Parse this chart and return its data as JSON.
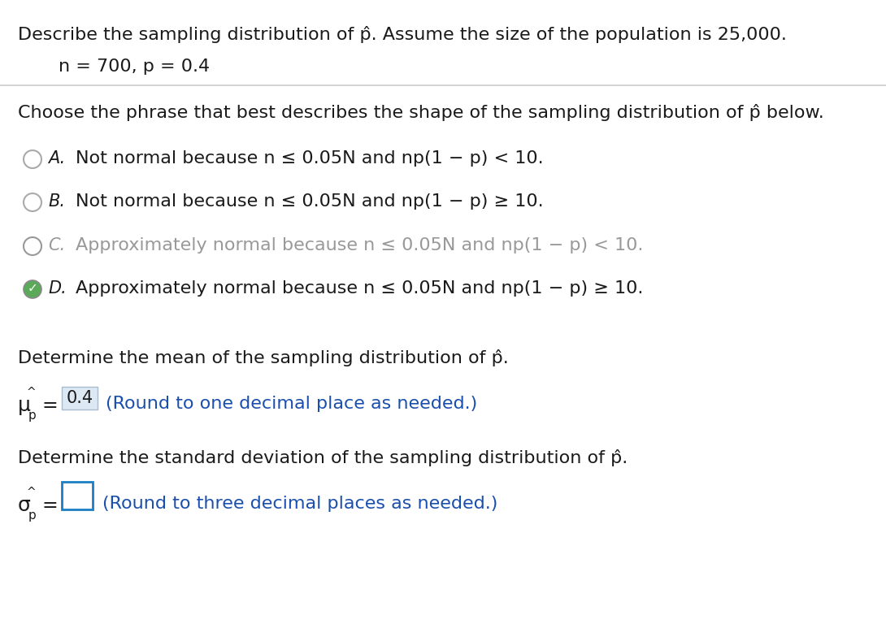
{
  "bg_color": "#ffffff",
  "text_color": "#1a1a1a",
  "gray_text_color": "#999999",
  "blue_hint_color": "#1a4fad",
  "green_check_color": "#4CAF50",
  "circle_color": "#aaaaaa",
  "selected_circle_color": "#5aaa5a",
  "box_bg_color": "#dce9f5",
  "box_border_color": "#aabbcc",
  "empty_box_border": "#1a7fc4",
  "divider_color": "#cccccc",
  "line1": "Describe the sampling distribution of p̂. Assume the size of the population is 25,000.",
  "line2": "n = 700, p = 0.4",
  "section1": "Choose the phrase that best describes the shape of the sampling distribution of p̂ below.",
  "options": [
    {
      "letter": "A.",
      "text": "Not normal because n ≤ 0.05N and np(1 − p) < 10.",
      "selected": false,
      "correct": false,
      "grayed": false
    },
    {
      "letter": "B.",
      "text": "Not normal because n ≤ 0.05N and np(1 − p) ≥ 10.",
      "selected": false,
      "correct": false,
      "grayed": false
    },
    {
      "letter": "C.",
      "text": "Approximately normal because n ≤ 0.05N and np(1 − p) < 10.",
      "selected": false,
      "correct": false,
      "grayed": true
    },
    {
      "letter": "D.",
      "text": "Approximately normal because n ≤ 0.05N and np(1 − p) ≥ 10.",
      "selected": true,
      "correct": true,
      "grayed": false
    }
  ],
  "section2": "Determine the mean of the sampling distribution of p̂.",
  "mean_value": "0.4",
  "mean_hint": "(Round to one decimal place as needed.)",
  "section3": "Determine the standard deviation of the sampling distribution of p̂.",
  "sd_hint": "(Round to three decimal places as needed.)"
}
